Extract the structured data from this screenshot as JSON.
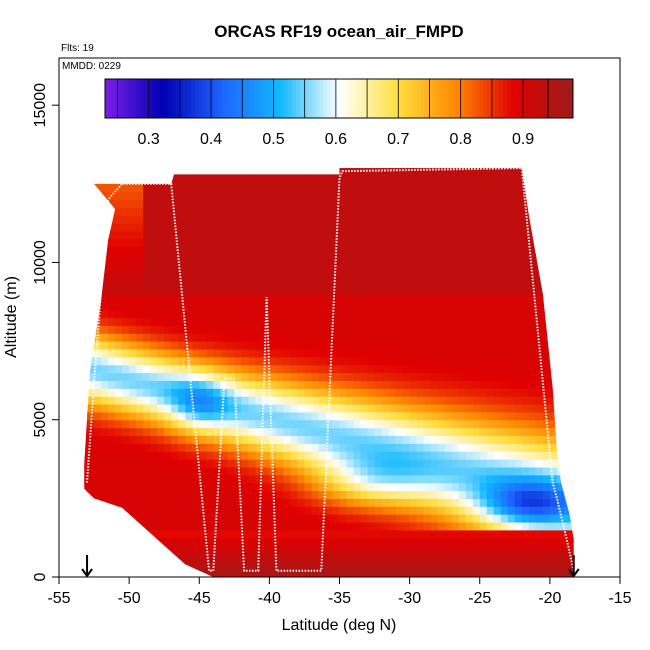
{
  "chart_data": {
    "type": "heatmap",
    "title": "ORCAS RF19 ocean_air_FMPD",
    "annotations": [
      "Flts: 19",
      "MMDD: 0229"
    ],
    "xlabel": "Latitude (deg N)",
    "ylabel": "Altitude (m)",
    "xlim": [
      -55,
      -15
    ],
    "ylim": [
      0,
      16500
    ],
    "xticks": [
      -55,
      -50,
      -45,
      -40,
      -35,
      -30,
      -25,
      -20,
      -15
    ],
    "yticks": [
      0,
      5000,
      10000,
      15000
    ],
    "colorbar": {
      "range": [
        0.23,
        0.98
      ],
      "ticks": [
        0.3,
        0.4,
        0.5,
        0.6,
        0.7,
        0.8,
        0.9
      ],
      "colors": [
        "#7a1fe6",
        "#0000b3",
        "#1e64ff",
        "#12b8ff",
        "#ffffff",
        "#ffe040",
        "#ff8800",
        "#e00000",
        "#9c1c1c"
      ],
      "position": "top"
    },
    "flight_track": {
      "lat": [
        -53.0,
        -52.5,
        -51.5,
        -50.5,
        -47.0,
        -44.3,
        -44.0,
        -43.2,
        -42.5,
        -41.8,
        -41.5,
        -40.8,
        -40.2,
        -39.5,
        -38.8,
        -38.2,
        -37.5,
        -36.8,
        -36.3,
        -35.0,
        -34.8,
        -22.0,
        -19.8,
        -19.5,
        -18.8,
        -18.3
      ],
      "alt": [
        3000,
        6200,
        12000,
        12500,
        12500,
        200,
        200,
        6300,
        6300,
        200,
        200,
        200,
        8900,
        200,
        200,
        200,
        200,
        200,
        200,
        12700,
        12900,
        13000,
        3000,
        2500,
        1200,
        200
      ]
    },
    "markers": [
      {
        "lat": -53.0,
        "symbol": "down-arrow"
      },
      {
        "lat": -18.3,
        "symbol": "down-arrow"
      }
    ],
    "grid": false
  }
}
